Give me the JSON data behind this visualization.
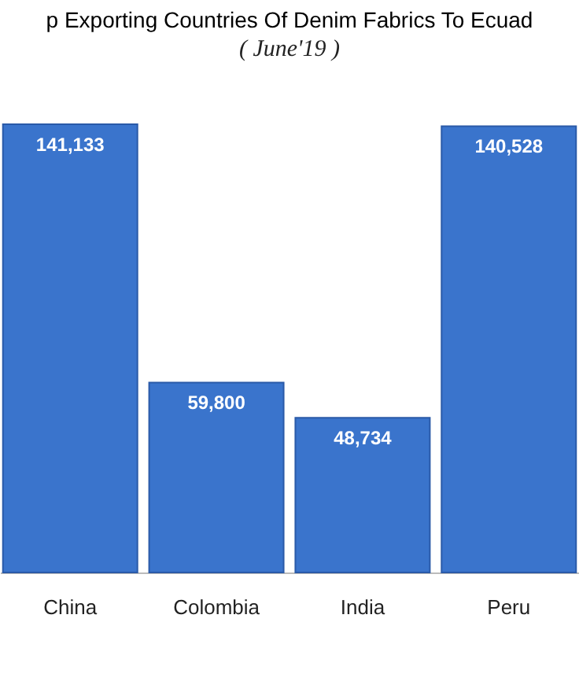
{
  "chart_data": {
    "type": "bar",
    "title": "p Exporting Countries Of Denim Fabrics To Ecuad",
    "subtitle": "( June'19 )",
    "categories": [
      "China",
      "Colombia",
      "India",
      "Peru"
    ],
    "values": [
      141133,
      59800,
      48734,
      140528
    ],
    "value_labels": [
      "141,133",
      "59,800",
      "48,734",
      "140,528"
    ],
    "color": "#3a74cc",
    "grid": false
  }
}
